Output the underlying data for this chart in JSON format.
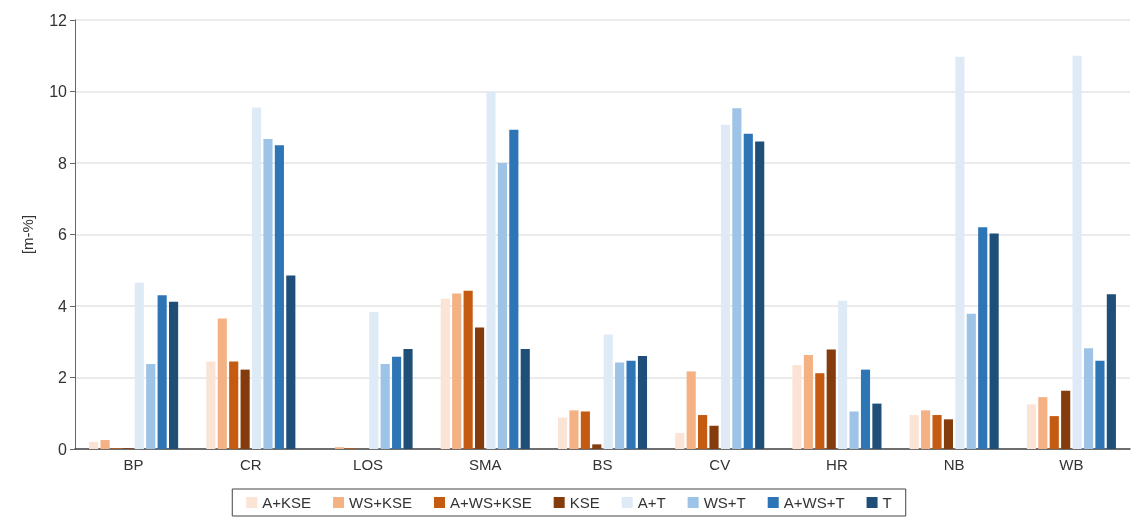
{
  "chart_data": {
    "type": "bar",
    "ylabel": "[m-%]",
    "categories": [
      "BP",
      "CR",
      "LOS",
      "SMA",
      "BS",
      "CV",
      "HR",
      "NB",
      "WB"
    ],
    "series": [
      {
        "name": "A+KSE",
        "color": "#fbe3d5",
        "values": [
          0.2,
          2.45,
          0,
          4.2,
          0.88,
          0.45,
          2.35,
          0.95,
          1.25
        ]
      },
      {
        "name": "WS+KSE",
        "color": "#f4b183",
        "values": [
          0.25,
          3.65,
          0.05,
          4.35,
          1.08,
          2.17,
          2.63,
          1.08,
          1.45
        ]
      },
      {
        "name": "A+WS+KSE",
        "color": "#c55a11",
        "values": [
          0.02,
          2.45,
          0.02,
          4.43,
          1.05,
          0.95,
          2.12,
          0.95,
          0.92
        ]
      },
      {
        "name": "KSE",
        "color": "#843c0c",
        "values": [
          0.02,
          2.22,
          0,
          3.4,
          0.13,
          0.65,
          2.78,
          0.83,
          1.63
        ]
      },
      {
        "name": "A+T",
        "color": "#deebf7",
        "values": [
          4.65,
          9.55,
          3.83,
          10,
          3.2,
          9.07,
          4.15,
          10.97,
          11
        ]
      },
      {
        "name": "WS+T",
        "color": "#9dc3e6",
        "values": [
          2.38,
          8.67,
          2.38,
          8,
          2.42,
          9.53,
          1.05,
          3.78,
          2.82
        ]
      },
      {
        "name": "A+WS+T",
        "color": "#2e75b6",
        "values": [
          4.3,
          8.5,
          2.58,
          8.93,
          2.47,
          8.82,
          2.22,
          6.2,
          2.47
        ]
      },
      {
        "name": "T",
        "color": "#1f4e79",
        "values": [
          4.12,
          4.85,
          2.8,
          2.8,
          2.6,
          8.6,
          1.27,
          6.03,
          4.33
        ]
      }
    ],
    "ylim": [
      0,
      12
    ],
    "yticks": [
      0,
      2,
      4,
      6,
      8,
      10,
      12
    ],
    "grid": "y",
    "legend": "bottom"
  }
}
